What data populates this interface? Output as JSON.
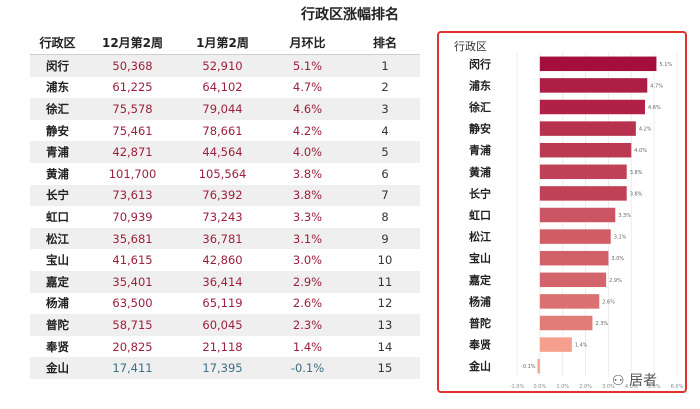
{
  "title": "行政区涨幅排名",
  "table": {
    "headers": [
      "行政区",
      "12月第2周",
      "1月第2周",
      "月环比",
      "排名"
    ],
    "rows": [
      {
        "district": "闵行",
        "dec": "50,368",
        "jan": "52,910",
        "mom": "5.1%",
        "rank": "1"
      },
      {
        "district": "浦东",
        "dec": "61,225",
        "jan": "64,102",
        "mom": "4.7%",
        "rank": "2"
      },
      {
        "district": "徐汇",
        "dec": "75,578",
        "jan": "79,044",
        "mom": "4.6%",
        "rank": "3"
      },
      {
        "district": "静安",
        "dec": "75,461",
        "jan": "78,661",
        "mom": "4.2%",
        "rank": "4"
      },
      {
        "district": "青浦",
        "dec": "42,871",
        "jan": "44,564",
        "mom": "4.0%",
        "rank": "5"
      },
      {
        "district": "黄浦",
        "dec": "101,700",
        "jan": "105,564",
        "mom": "3.8%",
        "rank": "6"
      },
      {
        "district": "长宁",
        "dec": "73,613",
        "jan": "76,392",
        "mom": "3.8%",
        "rank": "7"
      },
      {
        "district": "虹口",
        "dec": "70,939",
        "jan": "73,243",
        "mom": "3.3%",
        "rank": "8"
      },
      {
        "district": "松江",
        "dec": "35,681",
        "jan": "36,781",
        "mom": "3.1%",
        "rank": "9"
      },
      {
        "district": "宝山",
        "dec": "41,615",
        "jan": "42,860",
        "mom": "3.0%",
        "rank": "10"
      },
      {
        "district": "嘉定",
        "dec": "35,401",
        "jan": "36,414",
        "mom": "2.9%",
        "rank": "11"
      },
      {
        "district": "杨浦",
        "dec": "63,500",
        "jan": "65,119",
        "mom": "2.6%",
        "rank": "12"
      },
      {
        "district": "普陀",
        "dec": "58,715",
        "jan": "60,045",
        "mom": "2.3%",
        "rank": "13"
      },
      {
        "district": "奉贤",
        "dec": "20,825",
        "jan": "21,118",
        "mom": "1.4%",
        "rank": "14"
      },
      {
        "district": "金山",
        "dec": "17,411",
        "jan": "17,395",
        "mom": "-0.1%",
        "rank": "15"
      }
    ]
  },
  "chart_data": {
    "type": "bar",
    "orientation": "horizontal",
    "y_header": "行政区",
    "categories": [
      "闵行",
      "浦东",
      "徐汇",
      "静安",
      "青浦",
      "黄浦",
      "长宁",
      "虹口",
      "松江",
      "宝山",
      "嘉定",
      "杨浦",
      "普陀",
      "奉贤",
      "金山"
    ],
    "values": [
      5.1,
      4.7,
      4.6,
      4.2,
      4.0,
      3.8,
      3.8,
      3.3,
      3.1,
      3.0,
      2.9,
      2.6,
      2.3,
      1.4,
      -0.1
    ],
    "value_labels": [
      "5.1%",
      "4.7%",
      "4.6%",
      "4.2%",
      "4.0%",
      "3.8%",
      "3.8%",
      "3.3%",
      "3.1%",
      "3.0%",
      "2.9%",
      "2.6%",
      "2.3%",
      "1.4%",
      "-0.1%"
    ],
    "xlim": [
      -1,
      6
    ],
    "xticks": [
      "-1.0%",
      "0.0%",
      "1.0%",
      "2.0%",
      "3.0%",
      "4.0%",
      "5.0%",
      "6.0%"
    ],
    "grid": true,
    "colors": {
      "high": "#a50d3a",
      "low": "#f4a08c"
    }
  },
  "watermark": "居者",
  "colors": {
    "frame": "#e3322b",
    "value_text": "#9c1f3c",
    "negative_text": "#3a6f86"
  }
}
